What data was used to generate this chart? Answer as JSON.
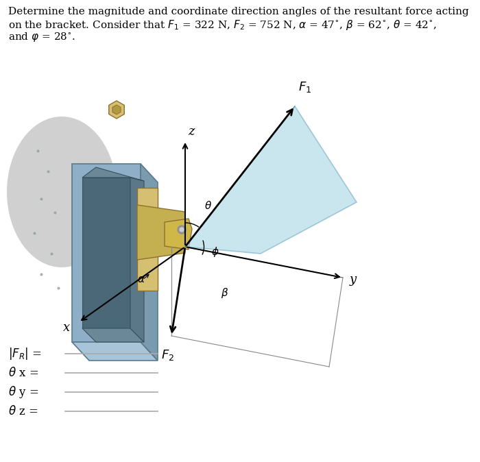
{
  "bg_color": "#ffffff",
  "title_line1": "Determine the magnitude and coordinate direction angles of the resultant force acting",
  "title_line2": "on the bracket. Consider that $F_1$ = 322 N, $F_2$ = 752 N, $\\alpha$ = 47$^{\\circ}$, $\\beta$ = 62$^{\\circ}$, $\\theta$ = 42$^{\\circ}$,",
  "title_line3": "and $\\varphi$ = 28$^{\\circ}$.",
  "cloud_color": "#c8c8c8",
  "bracket_front_color": "#8fafc8",
  "bracket_top_color": "#a8c4d8",
  "bracket_right_color": "#7a9ab0",
  "bracket_dark_color": "#5a7a8a",
  "bracket_inner_color": "#6080a0",
  "gold_color": "#d4c070",
  "gold_dark": "#b09840",
  "gold_mid": "#c4b050",
  "plane_color": "#add8e6",
  "plane_edge": "#7ab0c8",
  "axis_color": "#000000",
  "answer_line_color": "#aaaaaa"
}
